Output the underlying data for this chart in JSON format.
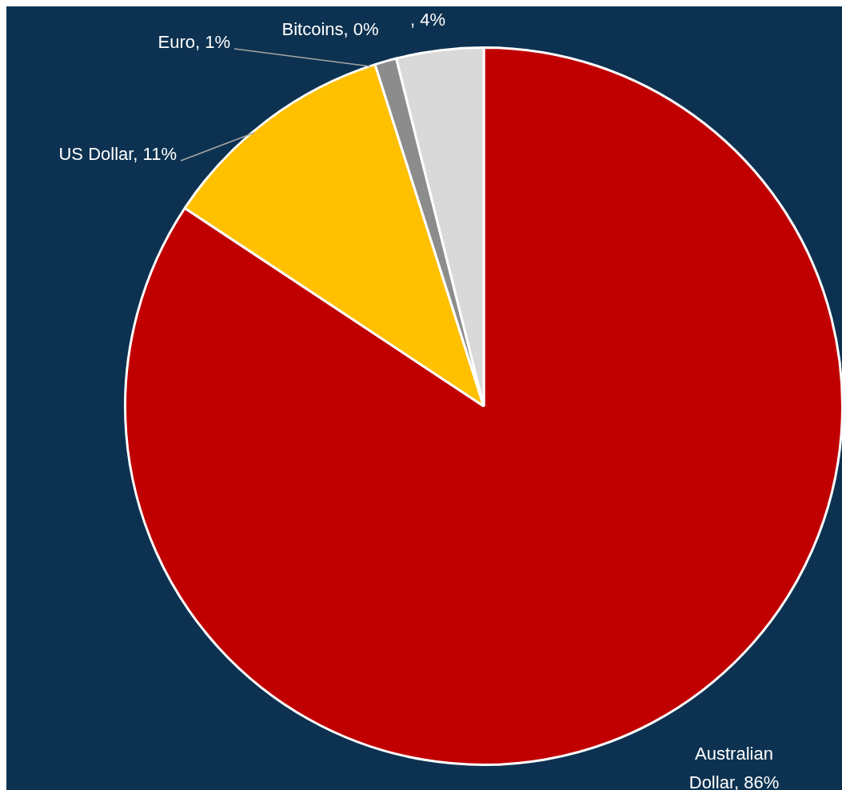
{
  "chart_data": {
    "type": "pie",
    "categories": [
      "Australian Dollar",
      "US Dollar",
      "Euro",
      "Bitcoins",
      null
    ],
    "values": [
      86,
      11,
      1,
      0,
      4
    ],
    "value_labels": [
      ", 86%",
      ", 11%",
      ", 1%",
      ", 0%",
      ", 4%"
    ],
    "colors": [
      "#c00000",
      "#ffc000",
      "#8c8c8c",
      "#1a1a1a",
      "#d9d9d9"
    ],
    "legend": false
  }
}
